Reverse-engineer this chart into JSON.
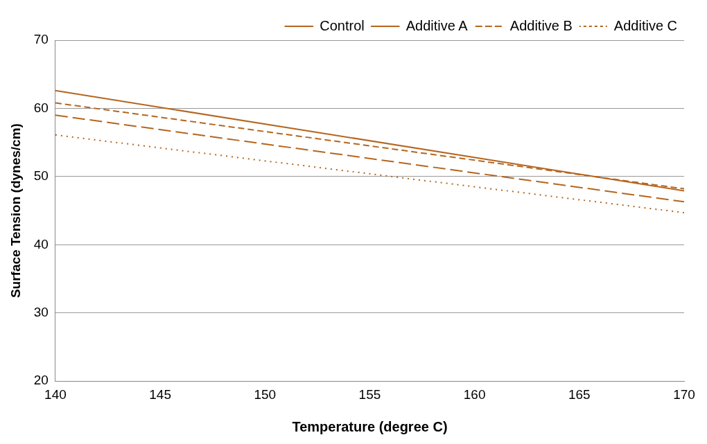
{
  "chart_data": {
    "type": "line",
    "xlabel": "Temperature (degree C)",
    "ylabel": "Surface Tension (dynes/cm)",
    "x": [
      140,
      170
    ],
    "xlim": [
      140,
      170
    ],
    "xticks": [
      140,
      145,
      150,
      155,
      160,
      165,
      170
    ],
    "ylim": [
      20,
      70
    ],
    "yticks": [
      20,
      30,
      40,
      50,
      60,
      70
    ],
    "grid": "y",
    "legend": "top right",
    "marker": "none",
    "series": [
      {
        "name": "Control",
        "color": "#b5651d",
        "values": [
          62.6,
          47.9
        ],
        "line_style": "solid"
      },
      {
        "name": "Additive A",
        "color": "#b5651d",
        "values": [
          59.0,
          46.3
        ],
        "line_style": "dashed"
      },
      {
        "name": "Additive B",
        "color": "#b5651d",
        "values": [
          60.8,
          48.2
        ],
        "line_style": "dashed"
      },
      {
        "name": "Additive C",
        "color": "#b5651d",
        "values": [
          56.1,
          44.7
        ],
        "line_style": "dotted"
      }
    ]
  }
}
